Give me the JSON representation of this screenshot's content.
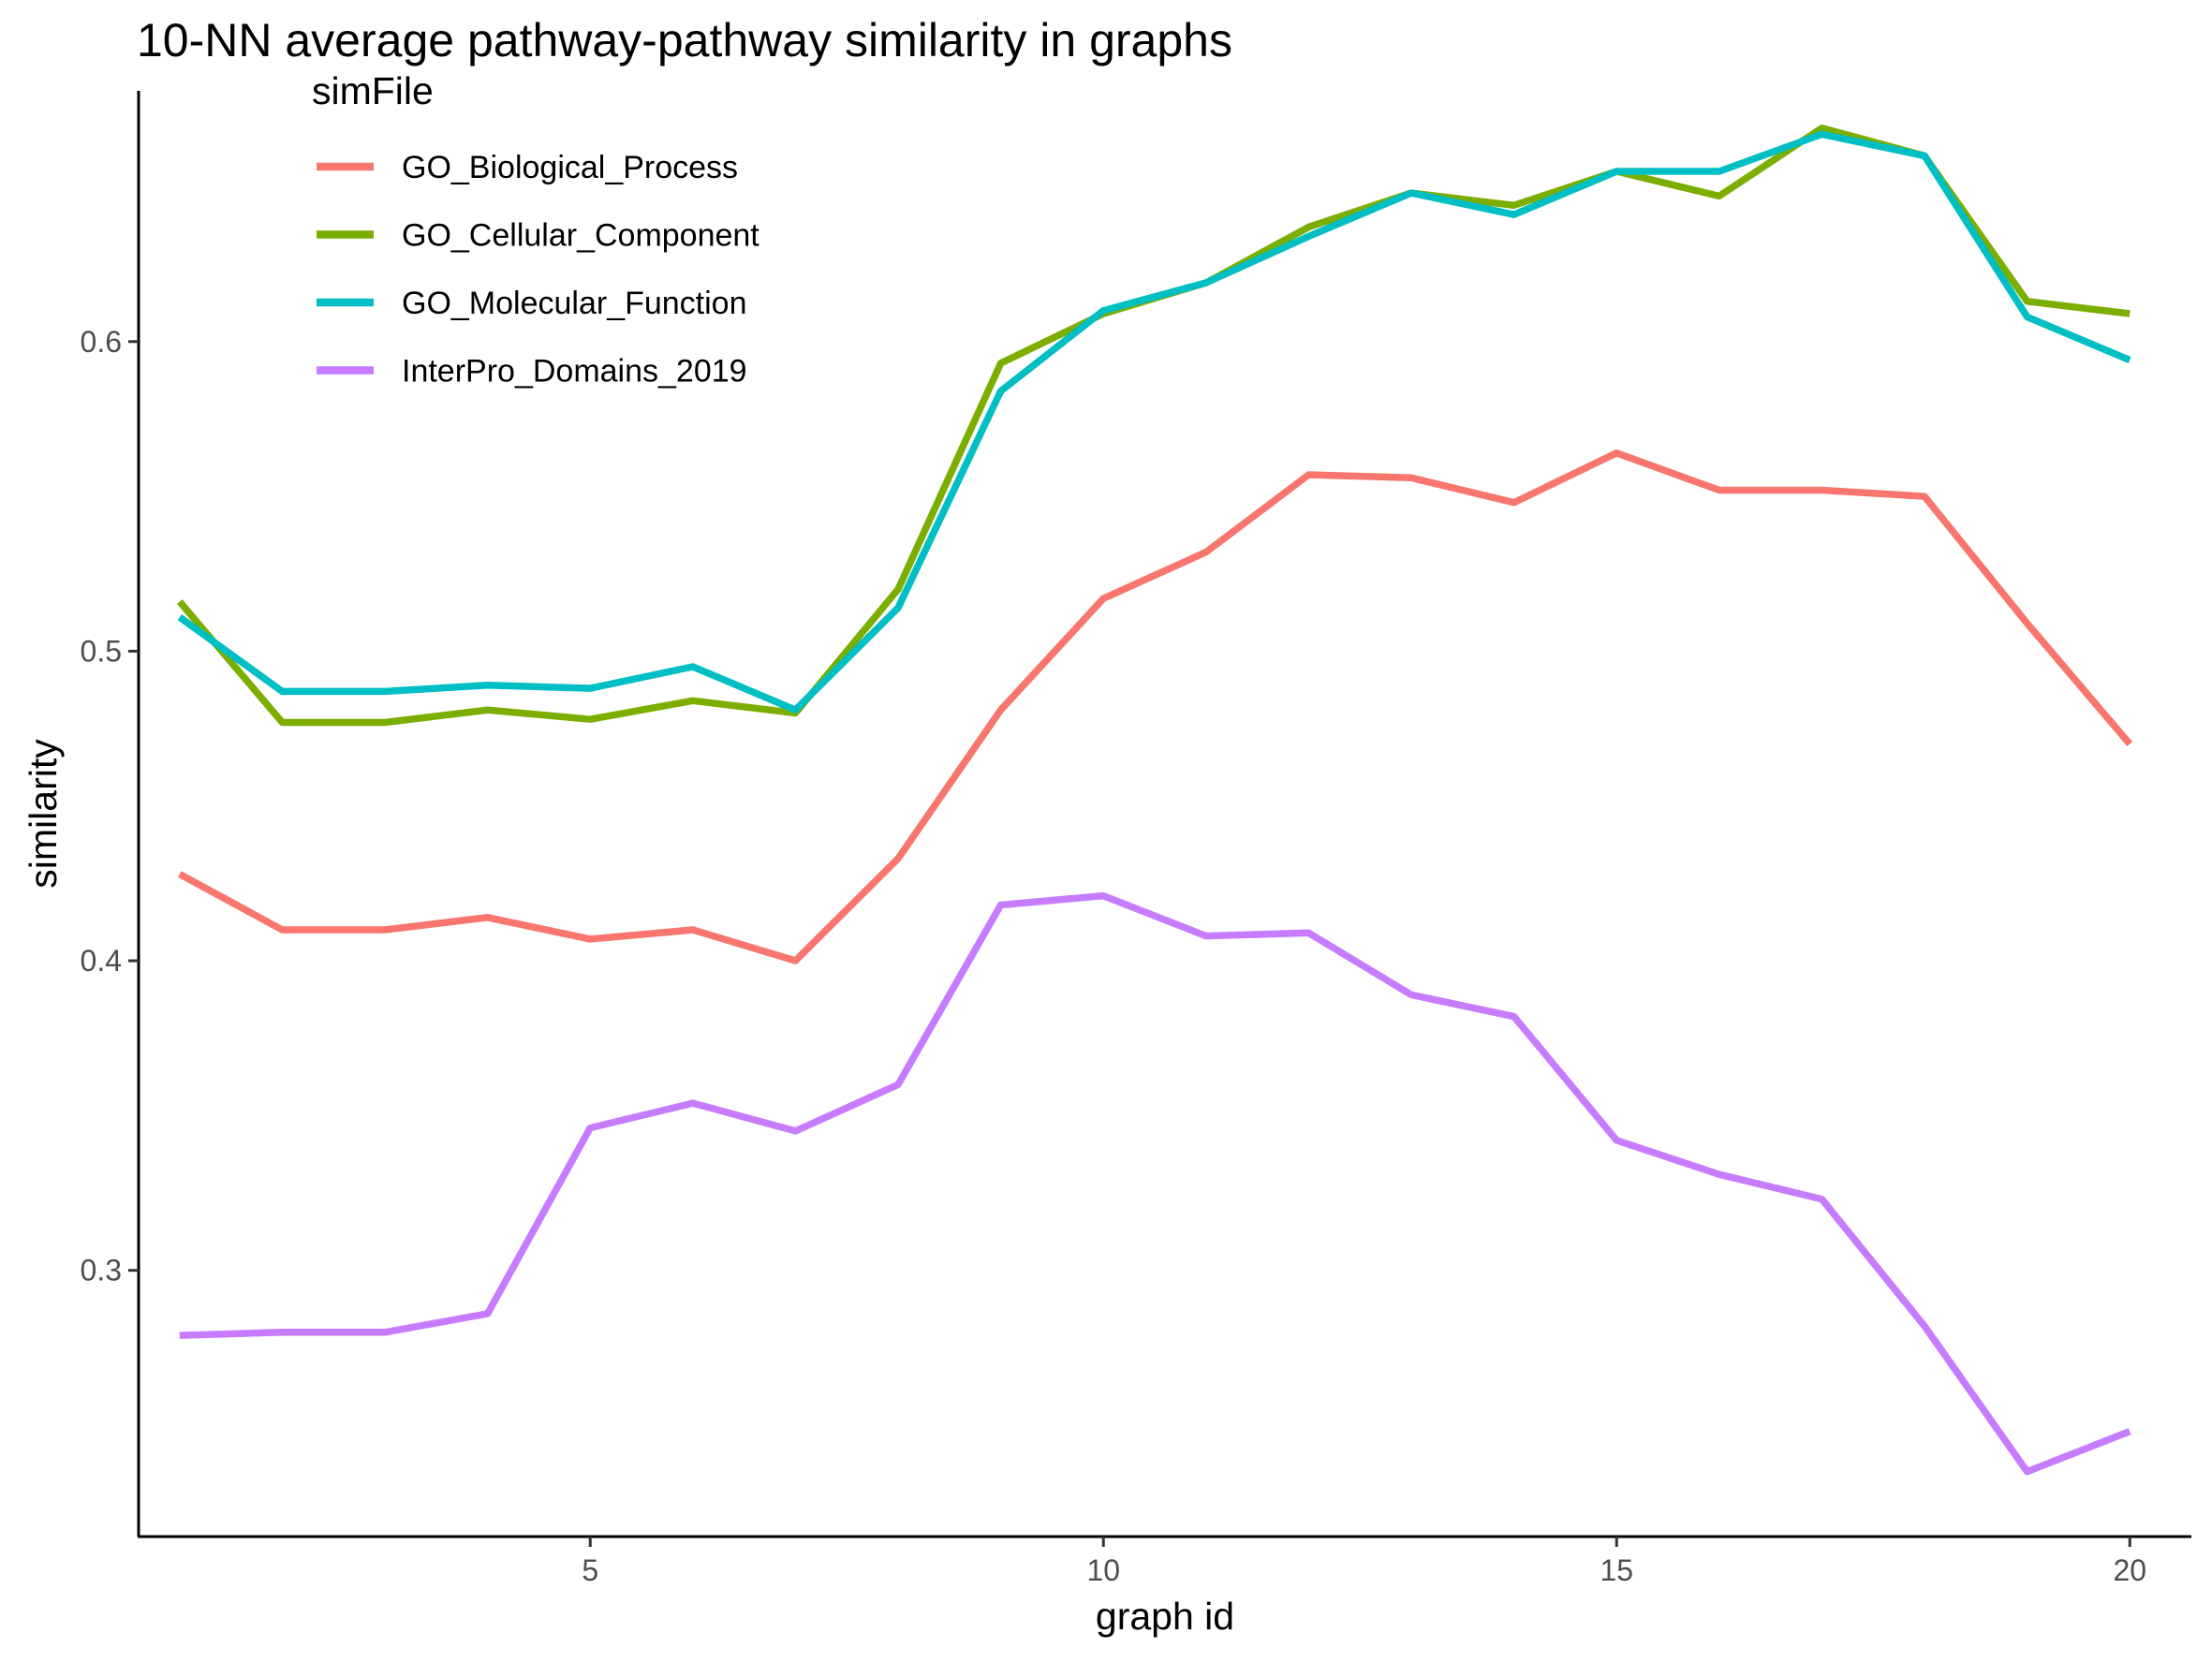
{
  "chart_data": {
    "type": "line",
    "title": "10-NN average pathway-pathway similarity in graphs",
    "xlabel": "graph id",
    "ylabel": "similarity",
    "x": [
      1,
      2,
      3,
      4,
      5,
      6,
      7,
      8,
      9,
      10,
      11,
      12,
      13,
      14,
      15,
      16,
      17,
      18,
      19,
      20
    ],
    "xlim": [
      0.6,
      20.6
    ],
    "ylim": [
      0.214,
      0.681
    ],
    "x_ticks": [
      5,
      10,
      15,
      20
    ],
    "x_tick_labels": [
      "5",
      "10",
      "15",
      "20"
    ],
    "y_ticks": [
      0.3,
      0.4,
      0.5,
      0.6
    ],
    "y_tick_labels": [
      "0.3",
      "0.4",
      "0.5",
      "0.6"
    ],
    "grid": false,
    "legend": {
      "title": "simFile",
      "position": "top-left"
    },
    "series": [
      {
        "name": "GO_Biological_Process",
        "color": "#F8766D",
        "values": [
          0.428,
          0.41,
          0.41,
          0.414,
          0.407,
          0.41,
          0.4,
          0.433,
          0.481,
          0.517,
          0.532,
          0.557,
          0.556,
          0.548,
          0.564,
          0.552,
          0.552,
          0.55,
          0.509,
          0.47
        ]
      },
      {
        "name": "GO_Cellular_Component",
        "color": "#7CAE00",
        "values": [
          0.516,
          0.477,
          0.477,
          0.481,
          0.478,
          0.484,
          0.48,
          0.52,
          0.593,
          0.609,
          0.619,
          0.637,
          0.648,
          0.644,
          0.655,
          0.647,
          0.669,
          0.66,
          0.613,
          0.609
        ]
      },
      {
        "name": "GO_Molecular_Function",
        "color": "#00BFC4",
        "values": [
          0.511,
          0.487,
          0.487,
          0.489,
          0.488,
          0.495,
          0.481,
          0.514,
          0.584,
          0.61,
          0.619,
          0.634,
          0.648,
          0.641,
          0.655,
          0.655,
          0.667,
          0.66,
          0.608,
          0.594
        ]
      },
      {
        "name": "InterPro_Domains_2019",
        "color": "#C77CFF",
        "values": [
          0.279,
          0.28,
          0.28,
          0.286,
          0.346,
          0.354,
          0.345,
          0.36,
          0.418,
          0.421,
          0.408,
          0.409,
          0.389,
          0.382,
          0.342,
          0.331,
          0.323,
          0.282,
          0.235,
          0.248
        ]
      }
    ]
  }
}
